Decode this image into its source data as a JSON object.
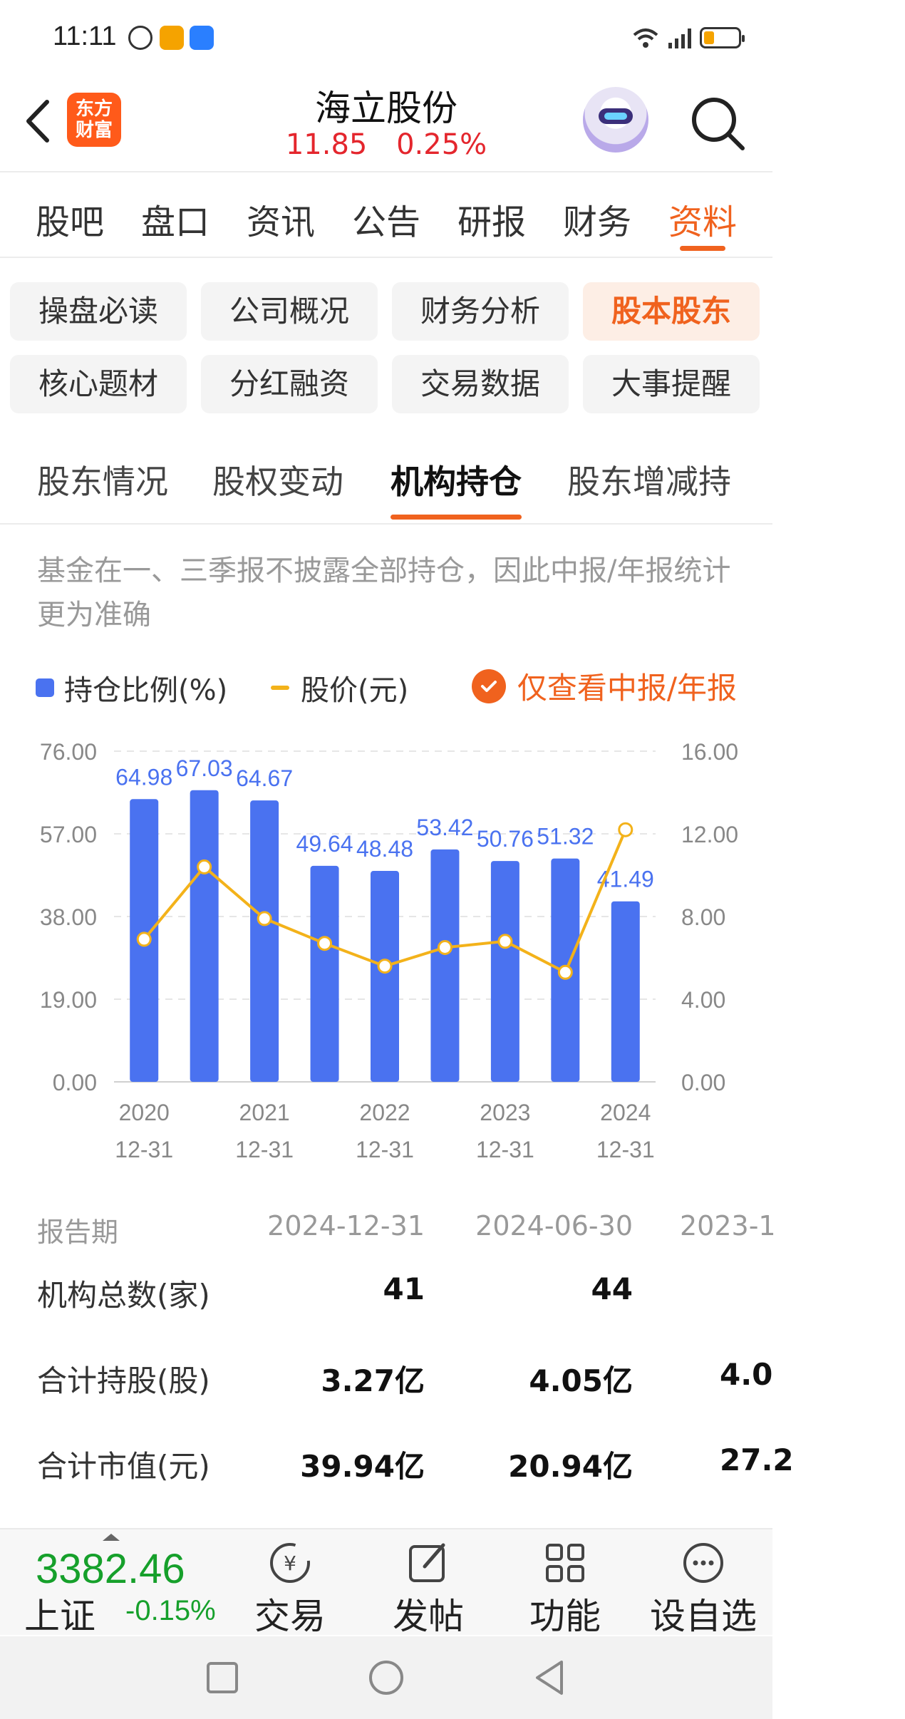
{
  "status": {
    "time": "11:11"
  },
  "header": {
    "brand_logo": "东方财富",
    "title": "海立股份",
    "price": "11.85",
    "change": "0.25%"
  },
  "main_tabs": [
    {
      "label": "股吧"
    },
    {
      "label": "盘口"
    },
    {
      "label": "资讯"
    },
    {
      "label": "公告"
    },
    {
      "label": "研报"
    },
    {
      "label": "财务"
    },
    {
      "label": "资料"
    }
  ],
  "main_tab_active": 6,
  "sub_buttons": [
    {
      "label": "操盘必读"
    },
    {
      "label": "公司概况"
    },
    {
      "label": "财务分析"
    },
    {
      "label": "股本股东"
    },
    {
      "label": "核心题材"
    },
    {
      "label": "分红融资"
    },
    {
      "label": "交易数据"
    },
    {
      "label": "大事提醒"
    }
  ],
  "sub_active": 3,
  "sec_tabs": [
    {
      "label": "股东情况"
    },
    {
      "label": "股权变动"
    },
    {
      "label": "机构持仓"
    },
    {
      "label": "股东增减持"
    }
  ],
  "sec_active": 2,
  "note": "基金在一、三季报不披露全部持仓，因此中报/年报统计更为准确",
  "legend": {
    "bar": "持仓比例(%)",
    "line": "股价(元)",
    "filter": "仅查看中报/年报"
  },
  "chart_data": {
    "type": "bar",
    "series": [
      {
        "name": "持仓比例(%)",
        "type": "bar",
        "axis": "left",
        "color": "#4a72f0",
        "values": [
          64.98,
          67.03,
          64.67,
          49.64,
          48.48,
          53.42,
          50.76,
          51.32,
          41.49
        ],
        "labels": [
          "64.98",
          "67.03",
          "64.67",
          "49.64",
          "48.48",
          "53.42",
          "50.76",
          "51.32",
          "41.49"
        ]
      },
      {
        "name": "股价(元)",
        "type": "line",
        "axis": "right",
        "color": "#f3b21a",
        "values": [
          6.9,
          10.4,
          7.9,
          6.7,
          5.6,
          6.5,
          6.8,
          5.3,
          12.2
        ]
      }
    ],
    "ylim_left": [
      0,
      76
    ],
    "ylim_right": [
      0,
      16
    ],
    "left_ticks": [
      "0.00",
      "19.00",
      "38.00",
      "57.00",
      "76.00"
    ],
    "right_ticks": [
      "0.00",
      "4.00",
      "8.00",
      "12.00",
      "16.00"
    ],
    "x_ticks": [
      {
        "index": 0,
        "year": "2020",
        "md": "12-31"
      },
      {
        "index": 2,
        "year": "2021",
        "md": "12-31"
      },
      {
        "index": 4,
        "year": "2022",
        "md": "12-31"
      },
      {
        "index": 6,
        "year": "2023",
        "md": "12-31"
      },
      {
        "index": 8,
        "year": "2024",
        "md": "12-31"
      }
    ],
    "grid": true
  },
  "table": {
    "head_label": "报告期",
    "columns": [
      "2024-12-31",
      "2024-06-30",
      "2023-1"
    ],
    "rows": [
      {
        "label": "机构总数(家)",
        "values": [
          "41",
          "44",
          ""
        ]
      },
      {
        "label": "合计持股(股)",
        "values": [
          "3.27亿",
          "4.05亿",
          "4.0"
        ]
      },
      {
        "label": "合计市值(元)",
        "values": [
          "39.94亿",
          "20.94亿",
          "27.2"
        ]
      }
    ]
  },
  "bottom": {
    "index_value": "3382.46",
    "index_name": "上证",
    "index_change": "-0.15%",
    "items": [
      {
        "label": "交易",
        "icon": "trade-icon"
      },
      {
        "label": "发帖",
        "icon": "post-icon"
      },
      {
        "label": "功能",
        "icon": "grid-icon"
      },
      {
        "label": "设自选",
        "icon": "more-icon"
      }
    ]
  }
}
